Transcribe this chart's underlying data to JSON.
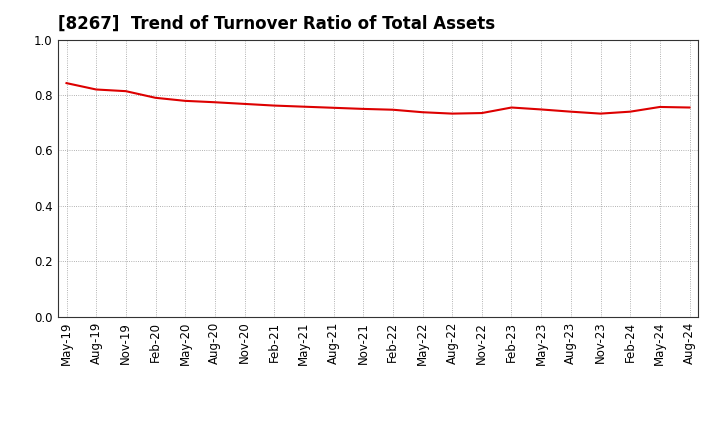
{
  "title": "[8267]  Trend of Turnover Ratio of Total Assets",
  "x_labels": [
    "May-19",
    "Aug-19",
    "Nov-19",
    "Feb-20",
    "May-20",
    "Aug-20",
    "Nov-20",
    "Feb-21",
    "May-21",
    "Aug-21",
    "Nov-21",
    "Feb-22",
    "May-22",
    "Aug-22",
    "Nov-22",
    "Feb-23",
    "May-23",
    "Aug-23",
    "Nov-23",
    "Feb-24",
    "May-24",
    "Aug-24"
  ],
  "y_values": [
    0.843,
    0.82,
    0.814,
    0.79,
    0.779,
    0.774,
    0.768,
    0.762,
    0.758,
    0.754,
    0.75,
    0.747,
    0.738,
    0.733,
    0.735,
    0.755,
    0.748,
    0.74,
    0.733,
    0.74,
    0.757,
    0.755
  ],
  "line_color": "#dd0000",
  "line_width": 1.5,
  "ylim": [
    0.0,
    1.0
  ],
  "yticks": [
    0.0,
    0.2,
    0.4,
    0.6,
    0.8,
    1.0
  ],
  "background_color": "#ffffff",
  "plot_bg_color": "#ffffff",
  "grid_color": "#999999",
  "title_fontsize": 12,
  "tick_fontsize": 8.5,
  "spine_color": "#333333"
}
